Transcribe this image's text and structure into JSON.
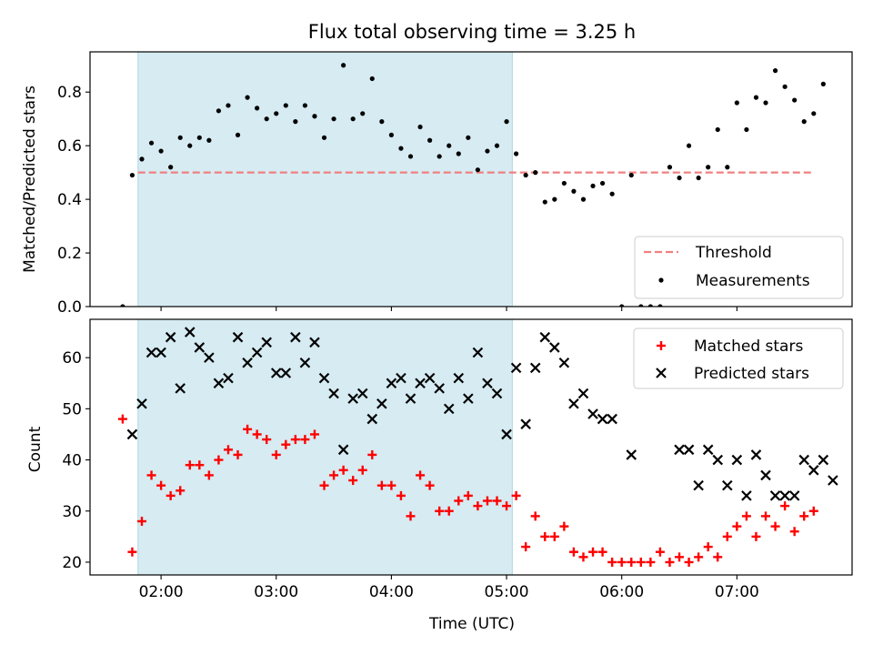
{
  "figure_title": "Flux total observing time = 3.25 h",
  "colors": {
    "threshold": "#f08080",
    "measurement": "#000000",
    "matched": "#ff0000",
    "predicted": "#000000",
    "shade": "#add8e6"
  },
  "chart_data": [
    {
      "type": "scatter",
      "panel": "top",
      "ylabel": "Matched/Predicted stars",
      "xlim": [
        "01:23",
        "08:00"
      ],
      "ylim": [
        0,
        0.95
      ],
      "yticks": [
        "0.0",
        "0.2",
        "0.4",
        "0.6",
        "0.8"
      ],
      "ytick_values": [
        0,
        0.2,
        0.4,
        0.6,
        0.8
      ],
      "shaded_region": [
        "01:48",
        "05:03"
      ],
      "threshold": {
        "name": "Threshold",
        "value": 0.5,
        "x_range": [
          "01:48",
          "07:40"
        ],
        "style": "dashed"
      },
      "legend": {
        "position": "lower-right",
        "entries": [
          "Threshold",
          "Measurements"
        ]
      },
      "series": [
        {
          "name": "Measurements",
          "points": [
            [
              "01:40",
              0.0
            ],
            [
              "01:45",
              0.49
            ],
            [
              "01:50",
              0.55
            ],
            [
              "01:55",
              0.61
            ],
            [
              "02:00",
              0.58
            ],
            [
              "02:05",
              0.52
            ],
            [
              "02:10",
              0.63
            ],
            [
              "02:15",
              0.6
            ],
            [
              "02:20",
              0.63
            ],
            [
              "02:25",
              0.62
            ],
            [
              "02:30",
              0.73
            ],
            [
              "02:35",
              0.75
            ],
            [
              "02:40",
              0.64
            ],
            [
              "02:45",
              0.78
            ],
            [
              "02:50",
              0.74
            ],
            [
              "02:55",
              0.7
            ],
            [
              "03:00",
              0.72
            ],
            [
              "03:05",
              0.75
            ],
            [
              "03:10",
              0.69
            ],
            [
              "03:15",
              0.75
            ],
            [
              "03:20",
              0.71
            ],
            [
              "03:25",
              0.63
            ],
            [
              "03:30",
              0.7
            ],
            [
              "03:35",
              0.9
            ],
            [
              "03:40",
              0.7
            ],
            [
              "03:45",
              0.72
            ],
            [
              "03:50",
              0.85
            ],
            [
              "03:55",
              0.69
            ],
            [
              "04:00",
              0.64
            ],
            [
              "04:05",
              0.59
            ],
            [
              "04:10",
              0.56
            ],
            [
              "04:15",
              0.67
            ],
            [
              "04:20",
              0.62
            ],
            [
              "04:25",
              0.56
            ],
            [
              "04:30",
              0.6
            ],
            [
              "04:35",
              0.57
            ],
            [
              "04:40",
              0.63
            ],
            [
              "04:45",
              0.51
            ],
            [
              "04:50",
              0.58
            ],
            [
              "04:55",
              0.6
            ],
            [
              "05:00",
              0.69
            ],
            [
              "05:05",
              0.57
            ],
            [
              "05:10",
              0.49
            ],
            [
              "05:15",
              0.5
            ],
            [
              "05:20",
              0.39
            ],
            [
              "05:25",
              0.4
            ],
            [
              "05:30",
              0.46
            ],
            [
              "05:35",
              0.43
            ],
            [
              "05:40",
              0.4
            ],
            [
              "05:45",
              0.45
            ],
            [
              "05:50",
              0.46
            ],
            [
              "05:55",
              0.42
            ],
            [
              "06:00",
              0.0
            ],
            [
              "06:05",
              0.49
            ],
            [
              "06:10",
              0.0
            ],
            [
              "06:15",
              0.0
            ],
            [
              "06:20",
              0.0
            ],
            [
              "06:25",
              0.52
            ],
            [
              "06:30",
              0.48
            ],
            [
              "06:35",
              0.6
            ],
            [
              "06:40",
              0.48
            ],
            [
              "06:45",
              0.52
            ],
            [
              "06:50",
              0.66
            ],
            [
              "06:55",
              0.52
            ],
            [
              "07:00",
              0.76
            ],
            [
              "07:05",
              0.66
            ],
            [
              "07:10",
              0.78
            ],
            [
              "07:15",
              0.76
            ],
            [
              "07:20",
              0.88
            ],
            [
              "07:25",
              0.82
            ],
            [
              "07:30",
              0.77
            ],
            [
              "07:35",
              0.69
            ],
            [
              "07:40",
              0.72
            ],
            [
              "07:45",
              0.83
            ]
          ]
        }
      ]
    },
    {
      "type": "scatter",
      "panel": "bottom",
      "xlabel": "Time (UTC)",
      "ylabel": "Count",
      "xlim": [
        "01:23",
        "08:00"
      ],
      "ylim": [
        17.5,
        67.5
      ],
      "xticks": [
        "02:00",
        "03:00",
        "04:00",
        "05:00",
        "06:00",
        "07:00"
      ],
      "yticks": [
        "20",
        "30",
        "40",
        "50",
        "60"
      ],
      "ytick_values": [
        20,
        30,
        40,
        50,
        60
      ],
      "shaded_region": [
        "01:48",
        "05:03"
      ],
      "legend": {
        "position": "upper-right",
        "entries": [
          "Matched stars",
          "Predicted stars"
        ]
      },
      "series": [
        {
          "name": "Matched stars",
          "marker": "+",
          "points": [
            [
              "01:40",
              48
            ],
            [
              "01:45",
              22
            ],
            [
              "01:50",
              28
            ],
            [
              "01:55",
              37
            ],
            [
              "02:00",
              35
            ],
            [
              "02:05",
              33
            ],
            [
              "02:10",
              34
            ],
            [
              "02:15",
              39
            ],
            [
              "02:20",
              39
            ],
            [
              "02:25",
              37
            ],
            [
              "02:30",
              40
            ],
            [
              "02:35",
              42
            ],
            [
              "02:40",
              41
            ],
            [
              "02:45",
              46
            ],
            [
              "02:50",
              45
            ],
            [
              "02:55",
              44
            ],
            [
              "03:00",
              41
            ],
            [
              "03:05",
              43
            ],
            [
              "03:10",
              44
            ],
            [
              "03:15",
              44
            ],
            [
              "03:20",
              45
            ],
            [
              "03:25",
              35
            ],
            [
              "03:30",
              37
            ],
            [
              "03:35",
              38
            ],
            [
              "03:40",
              36
            ],
            [
              "03:45",
              38
            ],
            [
              "03:50",
              41
            ],
            [
              "03:55",
              35
            ],
            [
              "04:00",
              35
            ],
            [
              "04:05",
              33
            ],
            [
              "04:10",
              29
            ],
            [
              "04:15",
              37
            ],
            [
              "04:20",
              35
            ],
            [
              "04:25",
              30
            ],
            [
              "04:30",
              30
            ],
            [
              "04:35",
              32
            ],
            [
              "04:40",
              33
            ],
            [
              "04:45",
              31
            ],
            [
              "04:50",
              32
            ],
            [
              "04:55",
              32
            ],
            [
              "05:00",
              31
            ],
            [
              "05:05",
              33
            ],
            [
              "05:10",
              23
            ],
            [
              "05:15",
              29
            ],
            [
              "05:20",
              25
            ],
            [
              "05:25",
              25
            ],
            [
              "05:30",
              27
            ],
            [
              "05:35",
              22
            ],
            [
              "05:40",
              21
            ],
            [
              "05:45",
              22
            ],
            [
              "05:50",
              22
            ],
            [
              "05:55",
              20
            ],
            [
              "06:00",
              20
            ],
            [
              "06:05",
              20
            ],
            [
              "06:10",
              20
            ],
            [
              "06:15",
              20
            ],
            [
              "06:20",
              22
            ],
            [
              "06:25",
              20
            ],
            [
              "06:30",
              21
            ],
            [
              "06:35",
              20
            ],
            [
              "06:40",
              21
            ],
            [
              "06:45",
              23
            ],
            [
              "06:50",
              21
            ],
            [
              "06:55",
              25
            ],
            [
              "07:00",
              27
            ],
            [
              "07:05",
              29
            ],
            [
              "07:10",
              25
            ],
            [
              "07:15",
              29
            ],
            [
              "07:20",
              27
            ],
            [
              "07:25",
              31
            ],
            [
              "07:30",
              26
            ],
            [
              "07:35",
              29
            ],
            [
              "07:40",
              30
            ]
          ]
        },
        {
          "name": "Predicted stars",
          "marker": "x",
          "points": [
            [
              "01:45",
              45
            ],
            [
              "01:50",
              51
            ],
            [
              "01:55",
              61
            ],
            [
              "02:00",
              61
            ],
            [
              "02:05",
              64
            ],
            [
              "02:10",
              54
            ],
            [
              "02:15",
              65
            ],
            [
              "02:20",
              62
            ],
            [
              "02:25",
              60
            ],
            [
              "02:30",
              55
            ],
            [
              "02:35",
              56
            ],
            [
              "02:40",
              64
            ],
            [
              "02:45",
              59
            ],
            [
              "02:50",
              61
            ],
            [
              "02:55",
              63
            ],
            [
              "03:00",
              57
            ],
            [
              "03:05",
              57
            ],
            [
              "03:10",
              64
            ],
            [
              "03:15",
              59
            ],
            [
              "03:20",
              63
            ],
            [
              "03:25",
              56
            ],
            [
              "03:30",
              53
            ],
            [
              "03:35",
              42
            ],
            [
              "03:40",
              52
            ],
            [
              "03:45",
              53
            ],
            [
              "03:50",
              48
            ],
            [
              "03:55",
              51
            ],
            [
              "04:00",
              55
            ],
            [
              "04:05",
              56
            ],
            [
              "04:10",
              52
            ],
            [
              "04:15",
              55
            ],
            [
              "04:20",
              56
            ],
            [
              "04:25",
              54
            ],
            [
              "04:30",
              50
            ],
            [
              "04:35",
              56
            ],
            [
              "04:40",
              52
            ],
            [
              "04:45",
              61
            ],
            [
              "04:50",
              55
            ],
            [
              "04:55",
              53
            ],
            [
              "05:00",
              45
            ],
            [
              "05:05",
              58
            ],
            [
              "05:10",
              47
            ],
            [
              "05:15",
              58
            ],
            [
              "05:20",
              64
            ],
            [
              "05:25",
              62
            ],
            [
              "05:30",
              59
            ],
            [
              "05:35",
              51
            ],
            [
              "05:40",
              53
            ],
            [
              "05:45",
              49
            ],
            [
              "05:50",
              48
            ],
            [
              "05:55",
              48
            ],
            [
              "06:05",
              41
            ],
            [
              "06:30",
              42
            ],
            [
              "06:35",
              42
            ],
            [
              "06:40",
              35
            ],
            [
              "06:45",
              42
            ],
            [
              "06:50",
              40
            ],
            [
              "06:55",
              35
            ],
            [
              "07:00",
              40
            ],
            [
              "07:05",
              33
            ],
            [
              "07:10",
              41
            ],
            [
              "07:15",
              37
            ],
            [
              "07:20",
              33
            ],
            [
              "07:25",
              33
            ],
            [
              "07:30",
              33
            ],
            [
              "07:35",
              40
            ],
            [
              "07:40",
              38
            ],
            [
              "07:45",
              40
            ],
            [
              "07:50",
              36
            ]
          ]
        }
      ]
    }
  ]
}
